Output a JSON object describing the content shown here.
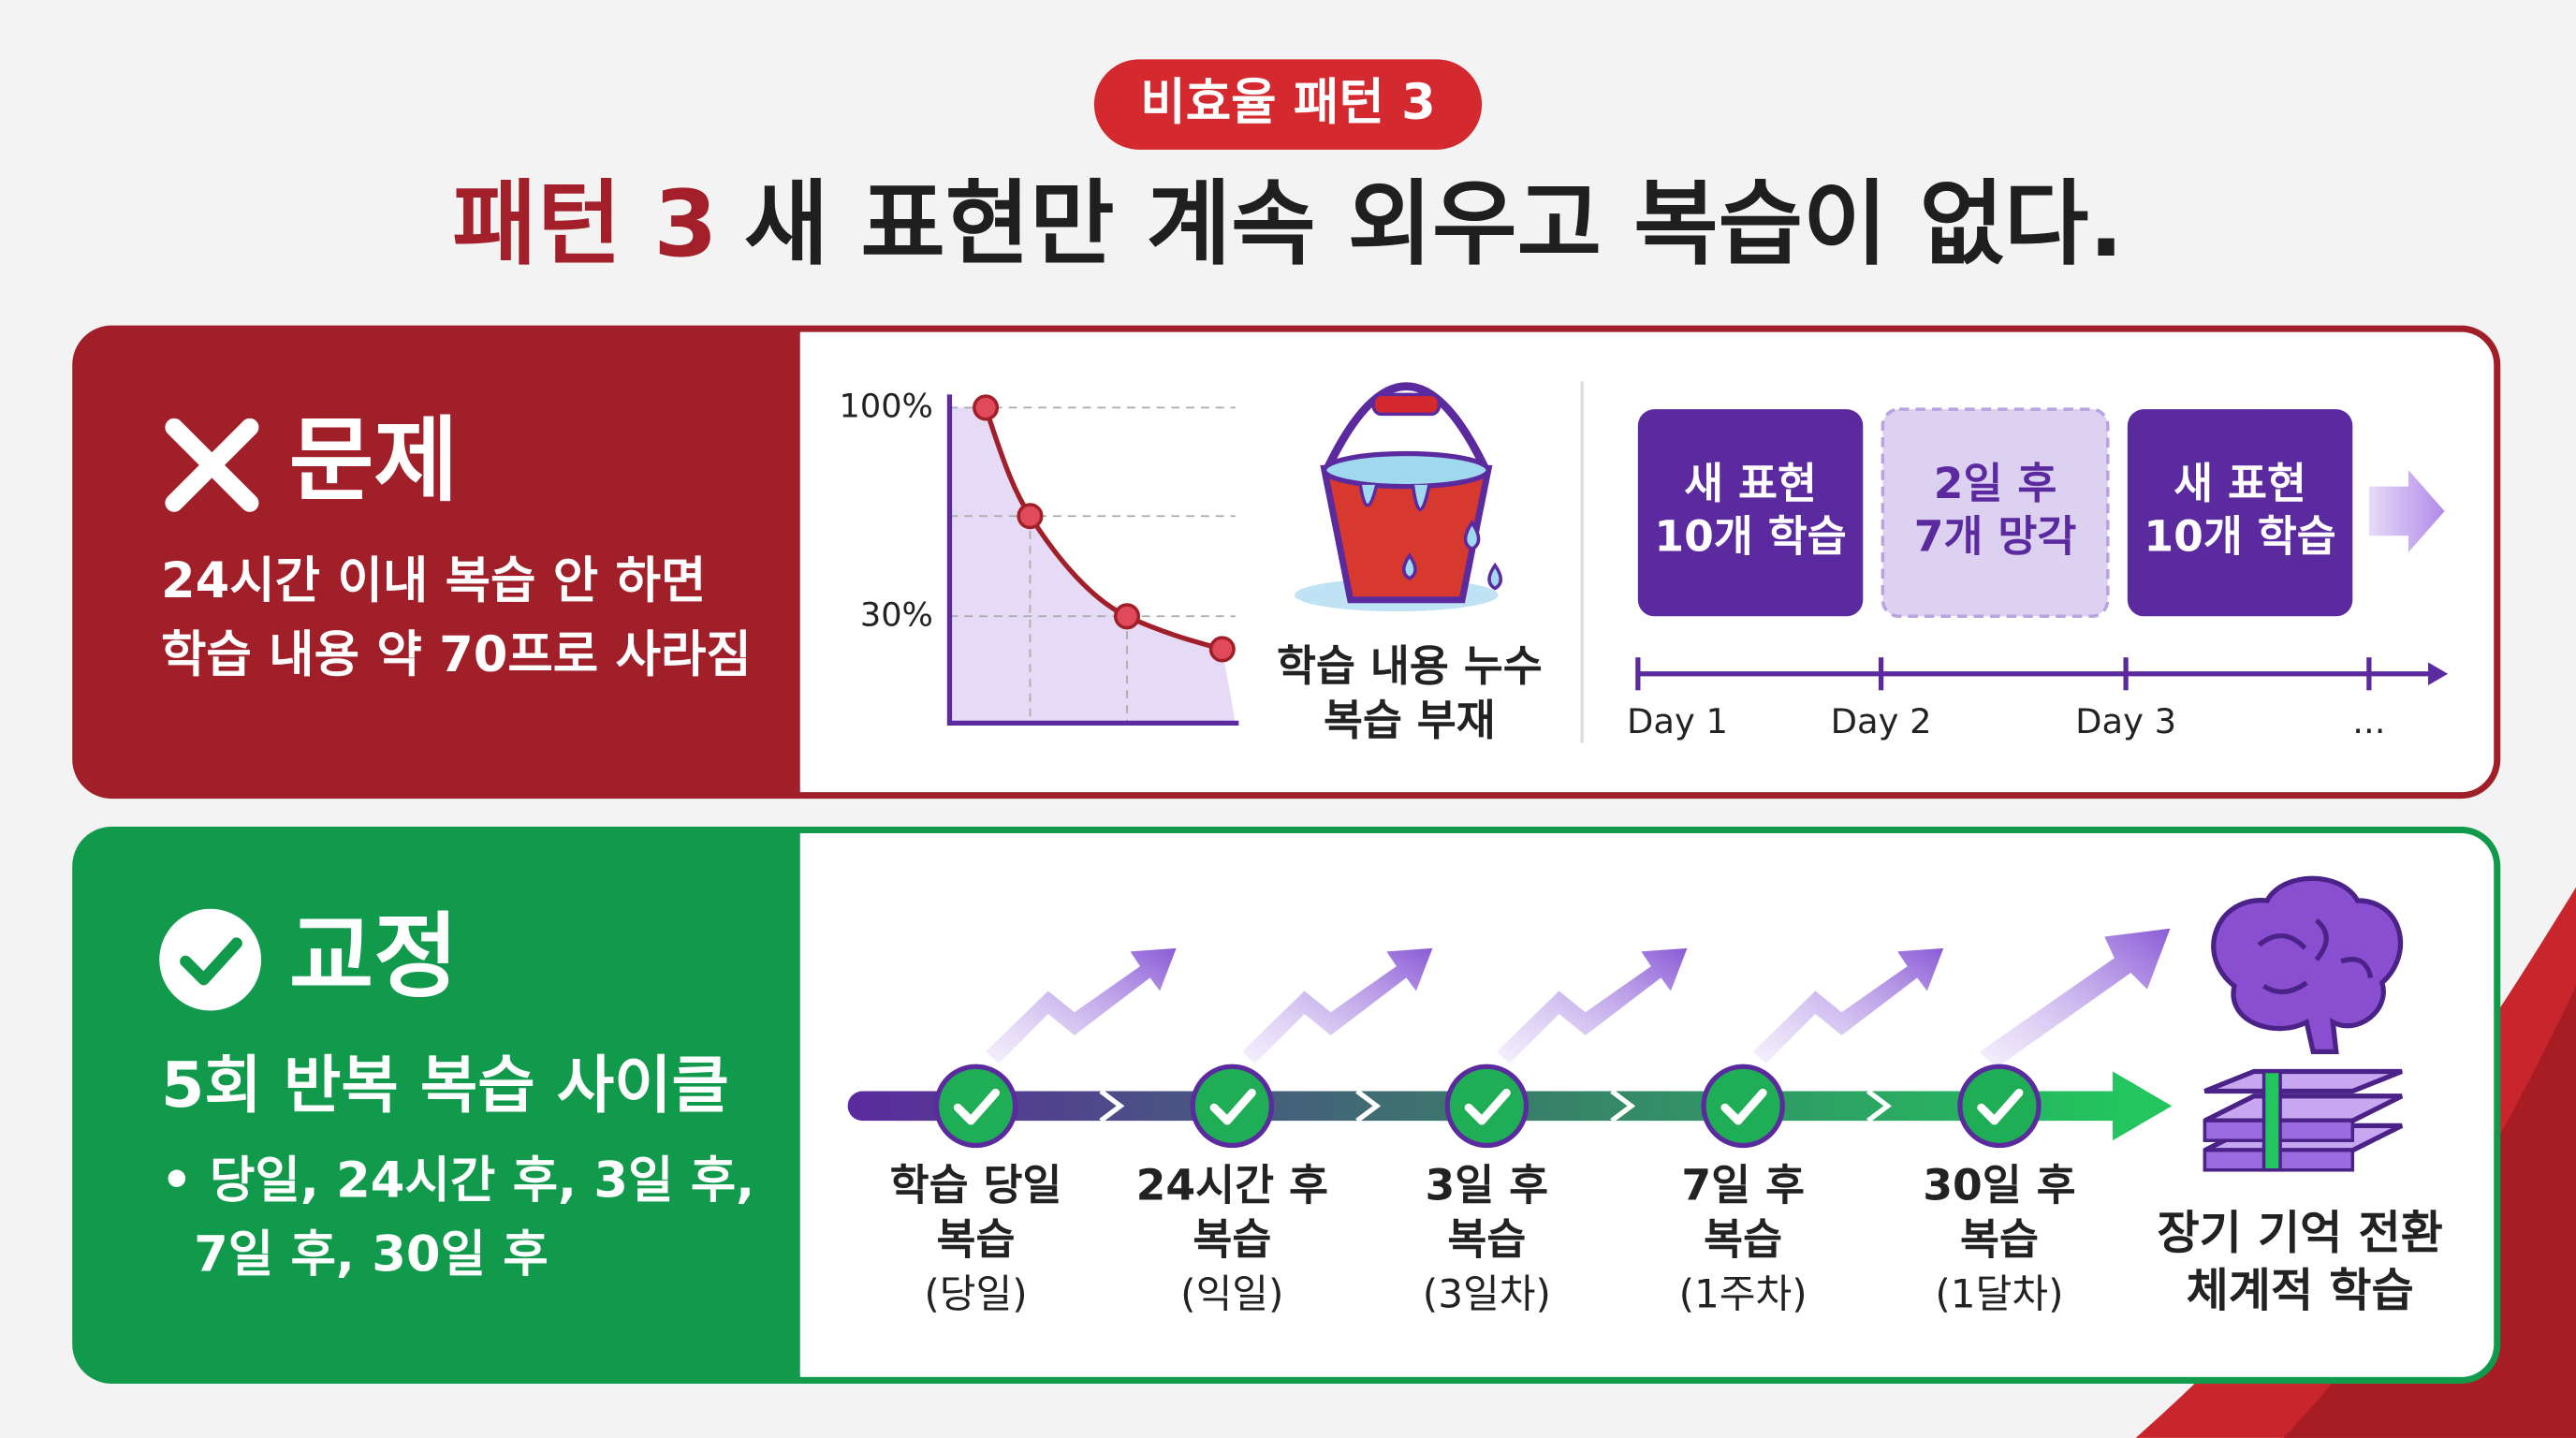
{
  "badge": "비효율 패턴 3",
  "title": {
    "highlight": "패턴 3",
    "text": "새 표현만 계속 외우고 복습이 없다."
  },
  "problem": {
    "heading": "문제",
    "lines": [
      "24시간 이내 복습 안 하면",
      "학습 내용 약 70프로 사라짐"
    ],
    "curve_labels": [
      "100%",
      "30%"
    ],
    "bucket_caption": [
      "학습 내용 누수",
      "복습 부재"
    ],
    "boxes": [
      [
        "새 표현",
        "10개 학습"
      ],
      [
        "2일 후",
        "7개 망각"
      ],
      [
        "새 표현",
        "10개 학습"
      ]
    ],
    "days": [
      "Day 1",
      "Day 2",
      "Day 3",
      "..."
    ]
  },
  "fix": {
    "heading": "교정",
    "subheading": "5회 반복 복습 사이클",
    "bullet_lines": [
      "• 당일, 24시간 후, 3일 후,",
      "7일 후, 30일 후"
    ],
    "steps": [
      [
        "학습 당일",
        "복습",
        "(당일)"
      ],
      [
        "24시간 후",
        "복습",
        "(익일)"
      ],
      [
        "3일 후",
        "복습",
        "(3일차)"
      ],
      [
        "7일 후",
        "복습",
        "(1주차)"
      ],
      [
        "30일 후",
        "복습",
        "(1달차)"
      ]
    ],
    "result": [
      "장기 기억 전환",
      "체계적 학습"
    ]
  }
}
